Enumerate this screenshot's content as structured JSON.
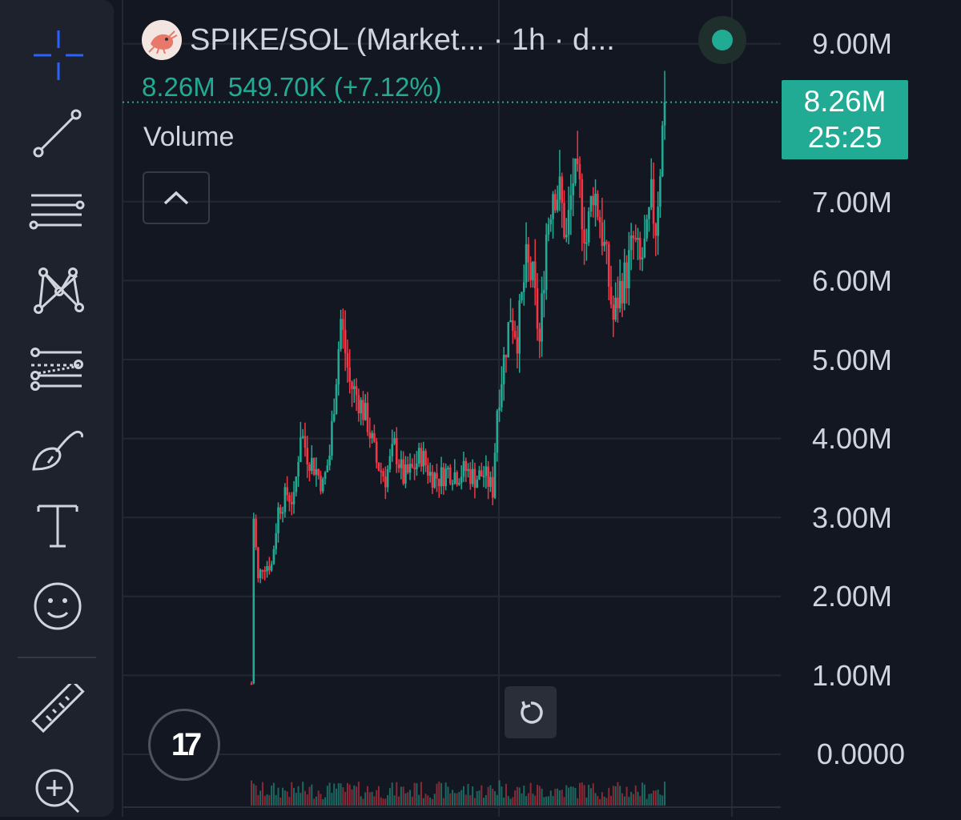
{
  "header": {
    "title": "SPIKE/SOL (Market... · 1h · d...",
    "logo_icon": "shrimp-logo-icon",
    "status": "live"
  },
  "legend": {
    "close": "8.26M",
    "change": "549.70K (+7.12%)",
    "volume_label": "Volume"
  },
  "price_scale": {
    "labels": [
      "9.00M",
      "7.00M",
      "6.00M",
      "5.00M",
      "4.00M",
      "3.00M",
      "2.00M",
      "1.00M",
      "0.0000"
    ],
    "last_price": "8.26M",
    "countdown": "25:25"
  },
  "toolbar": {
    "tools": [
      "crosshair-icon",
      "trend-line-icon",
      "horizontal-lines-icon",
      "pattern-icon",
      "fib-icon",
      "brush-icon",
      "text-icon",
      "emoji-icon",
      "ruler-icon",
      "zoom-in-icon"
    ]
  },
  "colors": {
    "up": "#22ab94",
    "down": "#f23645",
    "background": "#131722",
    "accent": "#2962ff"
  },
  "chart_data": {
    "type": "candlestick",
    "symbol": "SPIKE/SOL",
    "interval": "1h",
    "ylim": [
      0,
      9000000
    ],
    "y_ticks": [
      0,
      1000000,
      2000000,
      3000000,
      4000000,
      5000000,
      6000000,
      7000000,
      9000000
    ],
    "last_close": 8260000,
    "anchors": [
      [
        0,
        900000
      ],
      [
        1,
        3000000
      ],
      [
        3,
        2200000
      ],
      [
        5,
        2400000
      ],
      [
        9,
        2400000
      ],
      [
        12,
        3100000
      ],
      [
        16,
        3300000
      ],
      [
        19,
        3200000
      ],
      [
        22,
        4100000
      ],
      [
        25,
        3800000
      ],
      [
        29,
        3600000
      ],
      [
        32,
        3400000
      ],
      [
        35,
        3800000
      ],
      [
        40,
        5500000
      ],
      [
        44,
        4700000
      ],
      [
        48,
        4500000
      ],
      [
        52,
        4200000
      ],
      [
        56,
        3700000
      ],
      [
        60,
        3500000
      ],
      [
        64,
        3900000
      ],
      [
        68,
        3500000
      ],
      [
        72,
        3600000
      ],
      [
        76,
        3800000
      ],
      [
        80,
        3550000
      ],
      [
        84,
        3500000
      ],
      [
        88,
        3600000
      ],
      [
        92,
        3550000
      ],
      [
        96,
        3600000
      ],
      [
        100,
        3500000
      ],
      [
        104,
        3550000
      ],
      [
        108,
        3350000
      ],
      [
        110,
        4400000
      ],
      [
        113,
        5000000
      ],
      [
        116,
        5600000
      ],
      [
        119,
        5300000
      ],
      [
        123,
        6200000
      ],
      [
        126,
        6000000
      ],
      [
        129,
        5200000
      ],
      [
        132,
        6600000
      ],
      [
        135,
        7200000
      ],
      [
        138,
        7100000
      ],
      [
        141,
        6500000
      ],
      [
        144,
        7300000
      ],
      [
        147,
        7100000
      ],
      [
        150,
        6500000
      ],
      [
        153,
        7200000
      ],
      [
        156,
        6800000
      ],
      [
        159,
        6200000
      ],
      [
        162,
        5500000
      ],
      [
        165,
        5900000
      ],
      [
        168,
        6100000
      ],
      [
        171,
        6500000
      ],
      [
        174,
        6200000
      ],
      [
        177,
        6500000
      ],
      [
        179,
        7000000
      ],
      [
        181,
        6700000
      ],
      [
        183,
        7500000
      ],
      [
        185,
        8260000
      ]
    ]
  }
}
